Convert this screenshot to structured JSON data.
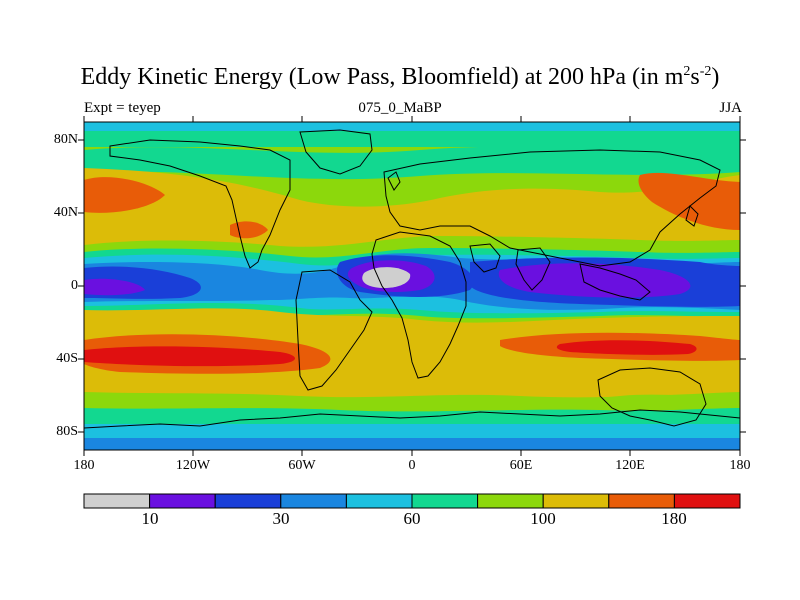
{
  "title": {
    "main": "Eddy Kinetic Energy (Low Pass, Bloomfield) at 200 hPa (in m",
    "sup1": "2",
    "mid": "s",
    "sup2": "-2",
    "end": ")"
  },
  "subtitle": {
    "left": "Expt = teyep",
    "center": "075_0_MaBP",
    "right": "JJA"
  },
  "axes": {
    "lat_labels": [
      "80N",
      "40N",
      "0",
      "40S",
      "80S"
    ],
    "lon_labels": [
      "180",
      "120W",
      "60W",
      "0",
      "60E",
      "120E",
      "180"
    ]
  },
  "colorbar": {
    "colors": [
      "#cfcfcf",
      "#6a10e0",
      "#1a3fd8",
      "#1a86e0",
      "#1cc0e0",
      "#12d890",
      "#8cd80c",
      "#dcbc08",
      "#e85c08",
      "#e01010"
    ],
    "labels": [
      "10",
      "30",
      "60",
      "100",
      "180"
    ]
  },
  "map_colors": {
    "gray": "#cfcfcf",
    "purple": "#6a10e0",
    "blue": "#1a3fd8",
    "mid_blue": "#1a86e0",
    "cyan": "#1cc0e0",
    "teal": "#12d890",
    "green": "#8cd80c",
    "yellow": "#dcbc08",
    "orange": "#e85c08",
    "red": "#e01010"
  }
}
